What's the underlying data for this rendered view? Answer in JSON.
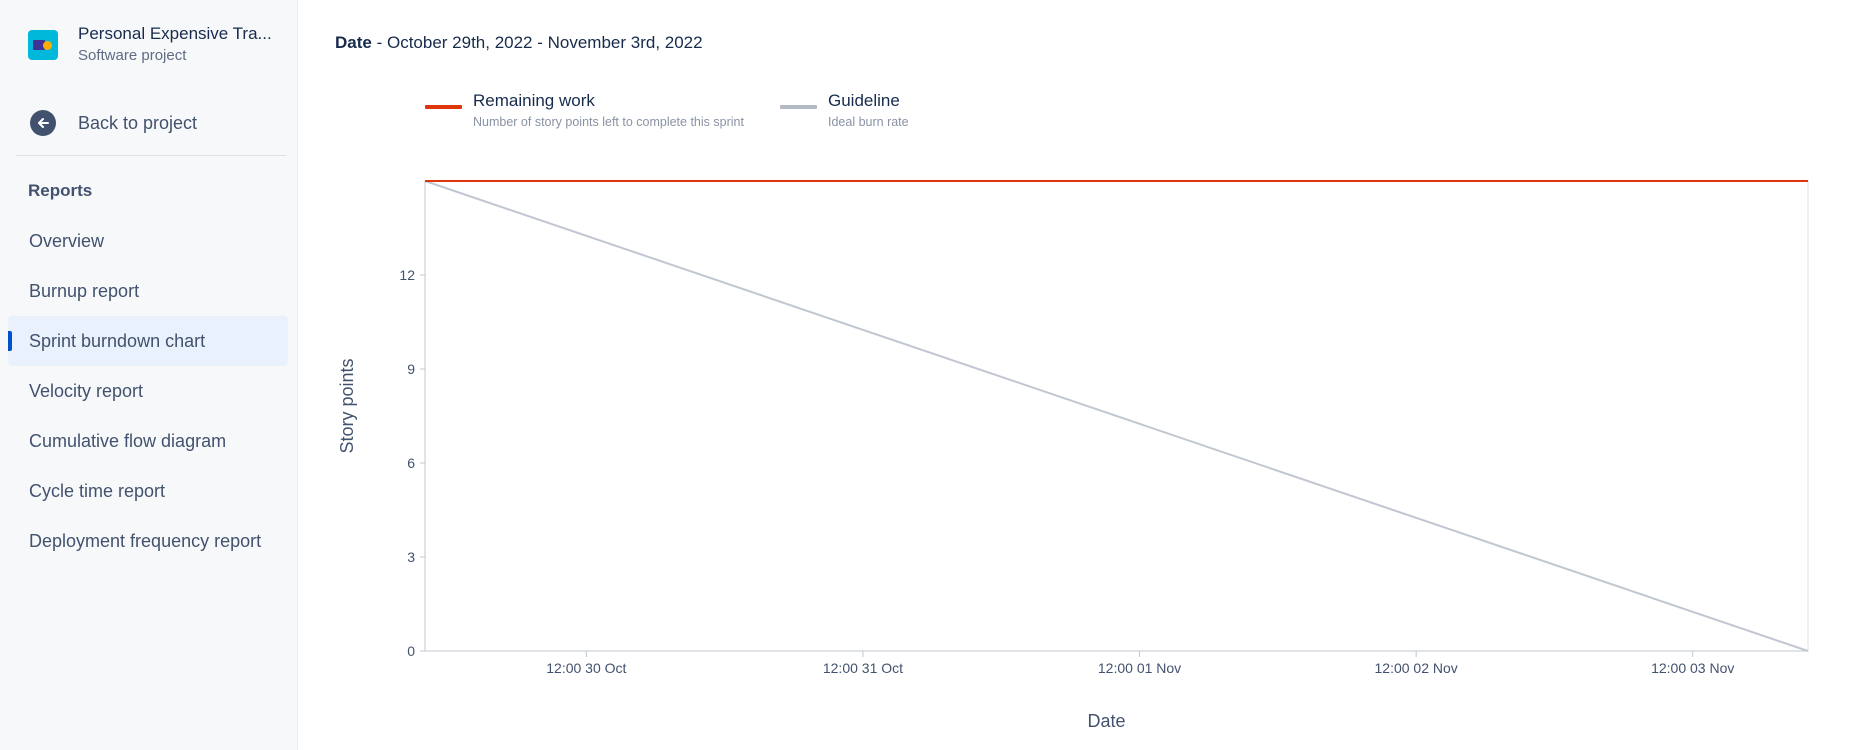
{
  "sidebar": {
    "project_name": "Personal Expensive Tra...",
    "project_type": "Software project",
    "back_label": "Back to project",
    "section_title": "Reports",
    "items": [
      {
        "label": "Overview"
      },
      {
        "label": "Burnup report"
      },
      {
        "label": "Sprint burndown chart",
        "active": true
      },
      {
        "label": "Velocity report"
      },
      {
        "label": "Cumulative flow diagram"
      },
      {
        "label": "Cycle time report"
      },
      {
        "label": "Deployment frequency report"
      }
    ]
  },
  "header": {
    "date_label": "Date",
    "date_range": " - October 29th, 2022 - November 3rd, 2022"
  },
  "legend": [
    {
      "title": "Remaining work",
      "desc": "Number of story points left to complete this sprint",
      "color": "#de350b"
    },
    {
      "title": "Guideline",
      "desc": "Ideal burn rate",
      "color": "#b3bac5"
    }
  ],
  "chart_data": {
    "type": "line",
    "ylabel": "Story points",
    "xlabel": "Date",
    "ylim": [
      0,
      15
    ],
    "yticks": [
      0,
      3,
      6,
      9,
      12
    ],
    "xlim": [
      "2022-10-29T22:00",
      "2022-11-03T22:00"
    ],
    "xticks": [
      "12:00 30 Oct",
      "12:00 31 Oct",
      "12:00 01 Nov",
      "12:00 02 Nov",
      "12:00 03 Nov"
    ],
    "xtick_dates": [
      "2022-10-30T12:00",
      "2022-10-31T12:00",
      "2022-11-01T12:00",
      "2022-11-02T12:00",
      "2022-11-03T12:00"
    ],
    "series": [
      {
        "name": "Remaining work",
        "color": "#de350b",
        "points": [
          {
            "x": "2022-10-29T22:00",
            "y": 15
          },
          {
            "x": "2022-11-03T22:00",
            "y": 15
          }
        ]
      },
      {
        "name": "Guideline",
        "color": "#c1c7d0",
        "points": [
          {
            "x": "2022-10-29T22:00",
            "y": 15
          },
          {
            "x": "2022-11-03T22:00",
            "y": 0
          }
        ]
      }
    ]
  }
}
